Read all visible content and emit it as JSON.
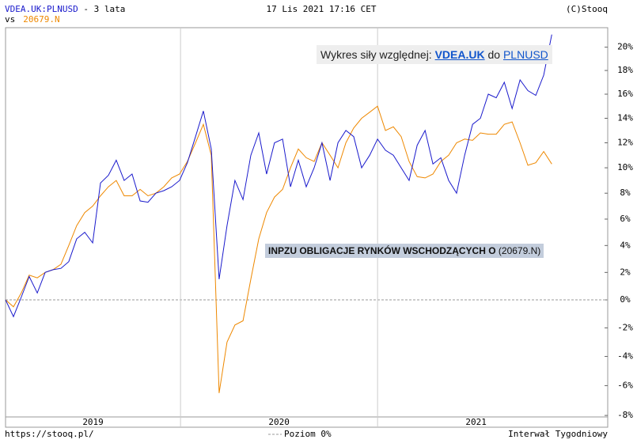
{
  "chart_data": {
    "type": "line",
    "header": {
      "symbol": "VDEA.UK:PLNUSD",
      "period": " - 3 lata",
      "vs": "vs",
      "compare": "20679.N",
      "date": "17 Lis 2021 17:16 CET",
      "copyright": "(C)Stooq"
    },
    "annotation": {
      "prefix": "Wykres siły względnej:",
      "symbol": "VDEA.UK",
      "joiner": "do",
      "currency": "PLNUSD"
    },
    "series_label": {
      "name": "INPZU OBLIGACJE RYNKÓW WSCHODZĄCYCH O",
      "code": "(20679.N)"
    },
    "footer": {
      "source": "https://stooq.pl/",
      "zero_level": "Poziom 0%",
      "interval": "Interwał Tygodniowy"
    },
    "log_scale": true,
    "xlim": [
      2019.112,
      2022.168
    ],
    "xticks": [
      2019,
      2020,
      2021
    ],
    "ylim": [
      -8.1,
      21.7
    ],
    "yticks": [
      {
        "value": 20,
        "label": "20%"
      },
      {
        "value": 18,
        "label": "18%"
      },
      {
        "value": 16,
        "label": "16%"
      },
      {
        "value": 14,
        "label": "14%"
      },
      {
        "value": 12,
        "label": "12%"
      },
      {
        "value": 10,
        "label": "10%"
      },
      {
        "value": 8,
        "label": "8%"
      },
      {
        "value": 6,
        "label": "6%"
      },
      {
        "value": 4,
        "label": "4%"
      },
      {
        "value": 2,
        "label": "2%"
      },
      {
        "value": 0,
        "label": "0%"
      },
      {
        "value": -2,
        "label": "-2%"
      },
      {
        "value": -4,
        "label": "-4%"
      },
      {
        "value": -6,
        "label": "-6%"
      },
      {
        "value": -8,
        "label": "-8%"
      }
    ],
    "x": [
      2019.112,
      2019.152,
      2019.192,
      2019.232,
      2019.273,
      2019.313,
      2019.353,
      2019.393,
      2019.433,
      2019.473,
      2019.514,
      2019.554,
      2019.594,
      2019.634,
      2019.674,
      2019.714,
      2019.754,
      2019.795,
      2019.835,
      2019.875,
      2019.915,
      2019.955,
      2019.995,
      2020.035,
      2020.076,
      2020.116,
      2020.156,
      2020.196,
      2020.236,
      2020.276,
      2020.317,
      2020.357,
      2020.397,
      2020.437,
      2020.477,
      2020.518,
      2020.558,
      2020.598,
      2020.638,
      2020.678,
      2020.718,
      2020.759,
      2020.799,
      2020.839,
      2020.879,
      2020.919,
      2020.96,
      2021.0,
      2021.04,
      2021.08,
      2021.12,
      2021.16,
      2021.201,
      2021.241,
      2021.281,
      2021.321,
      2021.361,
      2021.401,
      2021.442,
      2021.482,
      2021.522,
      2021.562,
      2021.602,
      2021.643,
      2021.683,
      2021.723,
      2021.763,
      2021.803,
      2021.843,
      2021.884
    ],
    "series": [
      {
        "name": "VDEA.UK:PLNUSD",
        "color": "#1a1acc",
        "values": [
          0,
          -1.2,
          0.2,
          1.7,
          0.5,
          2.0,
          2.2,
          2.3,
          2.8,
          4.5,
          5.0,
          4.2,
          8.8,
          9.4,
          10.6,
          9.0,
          9.5,
          7.4,
          7.3,
          8.0,
          8.2,
          8.5,
          9.0,
          10.4,
          12.5,
          14.6,
          11.5,
          1.5,
          5.5,
          9.0,
          7.5,
          11.0,
          12.8,
          9.5,
          12.0,
          12.3,
          8.5,
          10.6,
          8.5,
          10.0,
          12.0,
          9.0,
          12.0,
          13.0,
          12.5,
          10.0,
          11.0,
          12.3,
          11.4,
          11.0,
          10.0,
          9.0,
          11.8,
          13.0,
          10.3,
          10.8,
          9.0,
          8.0,
          11.0,
          13.5,
          14.0,
          16.0,
          15.7,
          17.0,
          14.8,
          17.2,
          16.3,
          15.9,
          17.6,
          21.1
        ]
      },
      {
        "name": "20679.N",
        "color": "#ee8800",
        "values": [
          0,
          -0.5,
          0.5,
          1.8,
          1.6,
          2.0,
          2.2,
          2.6,
          4.0,
          5.5,
          6.5,
          7.0,
          7.8,
          8.5,
          9.0,
          7.8,
          7.8,
          8.3,
          7.8,
          8.0,
          8.5,
          9.2,
          9.5,
          10.5,
          12.0,
          13.5,
          11.0,
          -6.5,
          -3.0,
          -1.8,
          -1.5,
          1.5,
          4.5,
          6.5,
          7.7,
          8.3,
          10.0,
          11.5,
          10.8,
          10.5,
          12.0,
          11.0,
          10.0,
          12.0,
          13.2,
          14.0,
          14.5,
          15.0,
          13.0,
          13.3,
          12.5,
          10.5,
          9.3,
          9.2,
          9.5,
          10.5,
          11.0,
          12.0,
          12.3,
          12.2,
          12.8,
          12.7,
          12.7,
          13.5,
          13.7,
          12.0,
          10.2,
          10.4,
          11.3,
          10.3
        ]
      }
    ]
  }
}
